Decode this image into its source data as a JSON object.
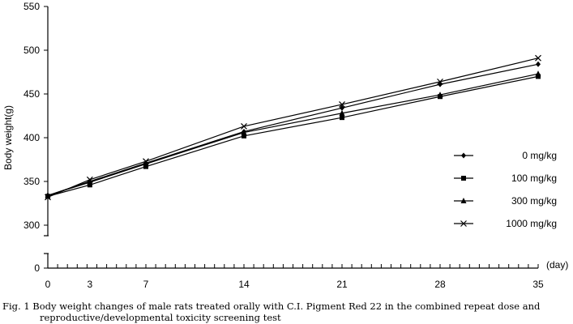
{
  "chart_data": {
    "type": "line",
    "title": "",
    "xlabel": "(day)",
    "ylabel": "Body weight(g)",
    "x": [
      0,
      3,
      7,
      14,
      21,
      28,
      35
    ],
    "x_ticks": [
      "0",
      "3",
      "7",
      "14",
      "21",
      "28",
      "35"
    ],
    "y_ticks": [
      "0",
      "300",
      "350",
      "400",
      "450",
      "500",
      "550"
    ],
    "ylim": [
      300,
      550
    ],
    "y_axis_break": true,
    "grid": false,
    "legend_position": "right",
    "series": [
      {
        "name": "0 mg/kg",
        "marker": "diamond",
        "values": [
          334,
          350,
          371,
          407,
          434,
          461,
          484
        ]
      },
      {
        "name": "100 mg/kg",
        "marker": "square",
        "values": [
          333,
          346,
          367,
          402,
          423,
          447,
          470
        ]
      },
      {
        "name": "300 mg/kg",
        "marker": "triangle",
        "values": [
          334,
          349,
          370,
          406,
          428,
          449,
          473
        ]
      },
      {
        "name": "1000 mg/kg",
        "marker": "x",
        "values": [
          332,
          352,
          373,
          413,
          438,
          464,
          491
        ]
      }
    ],
    "caption_line1": "Fig. 1  Body weight changes of male rats treated orally with C.I. Pigment Red 22 in the combined repeat dose and",
    "caption_line2": "reproductive/developmental toxicity screening test"
  }
}
